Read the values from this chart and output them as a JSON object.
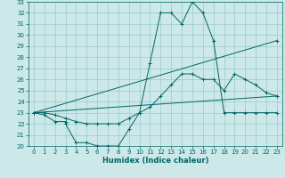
{
  "xlabel": "Humidex (Indice chaleur)",
  "xlim": [
    -0.5,
    23.5
  ],
  "ylim": [
    20,
    33
  ],
  "xticks": [
    0,
    1,
    2,
    3,
    4,
    5,
    6,
    7,
    8,
    9,
    10,
    11,
    12,
    13,
    14,
    15,
    16,
    17,
    18,
    19,
    20,
    21,
    22,
    23
  ],
  "yticks": [
    20,
    21,
    22,
    23,
    24,
    25,
    26,
    27,
    28,
    29,
    30,
    31,
    32,
    33
  ],
  "background_color": "#cce8e8",
  "grid_color": "#99cccc",
  "line_color": "#006666",
  "lines": [
    {
      "x": [
        0,
        1,
        2,
        3,
        3,
        4,
        5,
        6,
        7,
        8,
        9,
        10,
        11,
        12,
        13,
        14,
        15,
        16,
        17,
        18,
        19,
        20,
        21,
        22,
        23
      ],
      "y": [
        23,
        22.8,
        22.2,
        22.2,
        22,
        20.3,
        20.3,
        20,
        20,
        20,
        21.5,
        23,
        27.5,
        32,
        32,
        31,
        33,
        32,
        29.5,
        23,
        23,
        23,
        23,
        23,
        23
      ]
    },
    {
      "x": [
        0,
        23
      ],
      "y": [
        23,
        29.5
      ]
    },
    {
      "x": [
        0,
        23
      ],
      "y": [
        23,
        24.5
      ]
    },
    {
      "x": [
        0,
        1,
        2,
        3,
        4,
        5,
        6,
        7,
        8,
        9,
        10,
        11,
        12,
        13,
        14,
        15,
        16,
        17,
        18,
        19,
        20,
        21,
        22,
        23
      ],
      "y": [
        23,
        23,
        22.8,
        22.5,
        22.2,
        22,
        22,
        22,
        22,
        22.5,
        23,
        23.5,
        24.5,
        25.5,
        26.5,
        26.5,
        26,
        26,
        25,
        26.5,
        26,
        25.5,
        24.8,
        24.5
      ]
    }
  ]
}
